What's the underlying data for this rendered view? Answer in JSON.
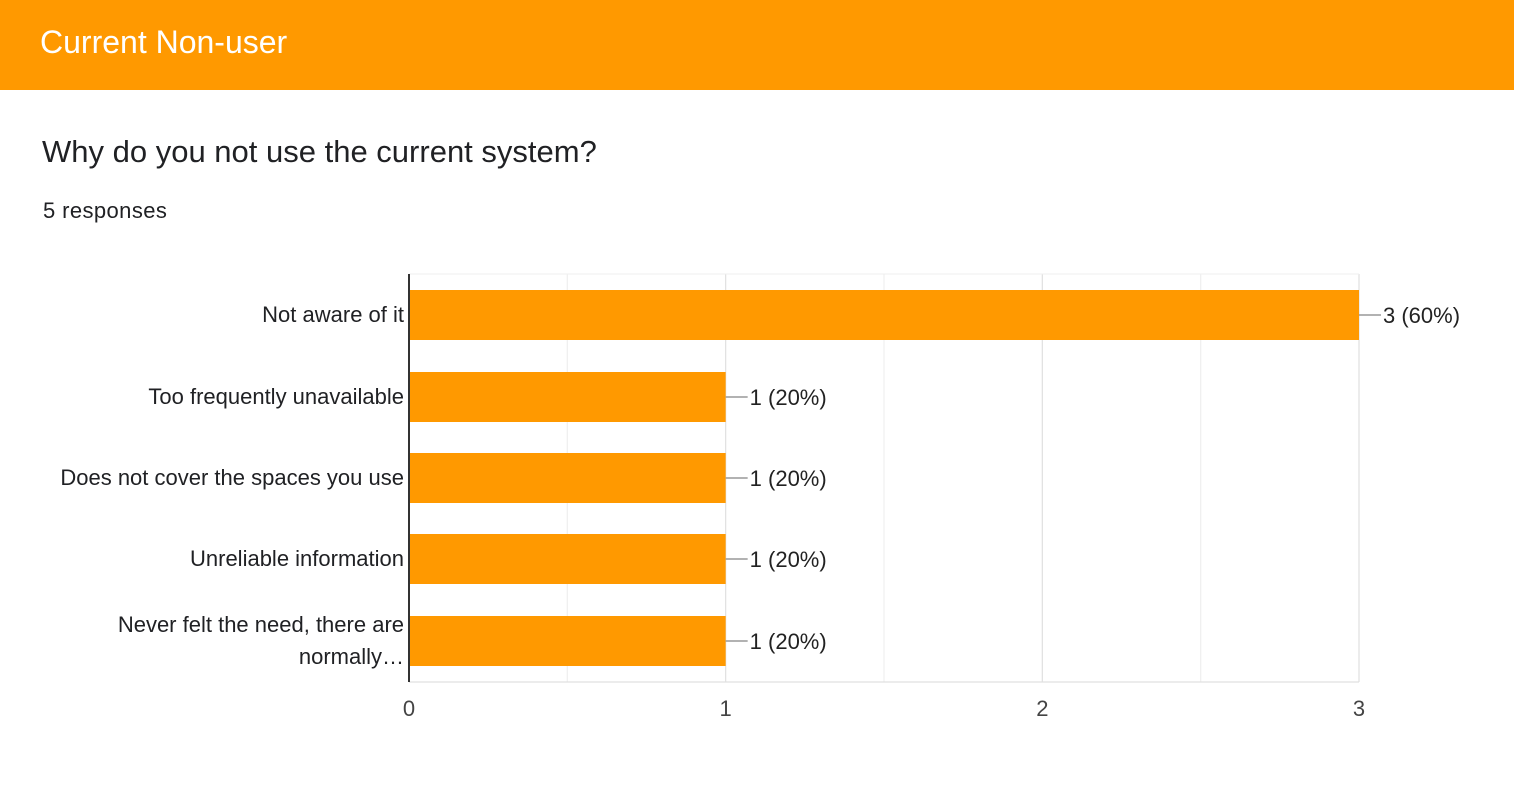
{
  "header": {
    "title": "Current Non-user"
  },
  "question": {
    "title": "Why do you not use the current system?",
    "responses": "5 responses"
  },
  "colors": {
    "accent": "#ff9900",
    "grid": "#e8e8e8",
    "axis": "#333333",
    "leader": "#999999"
  },
  "chart_data": {
    "type": "bar",
    "orientation": "horizontal",
    "categories": [
      "Not aware of it",
      "Too frequently unavailable",
      "Does not cover the spaces you use",
      "Unreliable information",
      "Never felt the need, there are normally…"
    ],
    "values": [
      3,
      1,
      1,
      1,
      1
    ],
    "data_labels": [
      "3 (60%)",
      "1 (20%)",
      "1 (20%)",
      "1 (20%)",
      "1 (20%)"
    ],
    "xlim": [
      0,
      3
    ],
    "x_ticks": [
      "0",
      "1",
      "2",
      "3"
    ],
    "grid": true
  }
}
